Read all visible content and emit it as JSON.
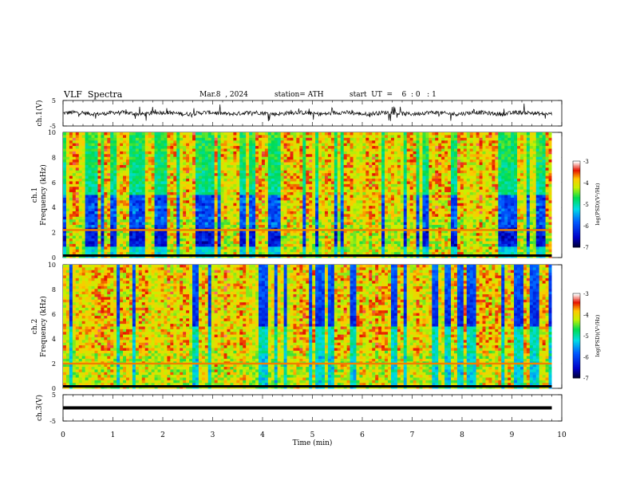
{
  "header": {
    "title": "VLF  Spectra",
    "date": "Mar.8  , 2024",
    "station": "station= ATH",
    "start": "start  UT  =    6  : 0   : 1"
  },
  "chart_data": [
    {
      "type": "line",
      "panel": "ch1-waveform",
      "ylabel": "ch.1(V)",
      "yticks": [
        "5",
        "-5"
      ],
      "ylim": [
        -5,
        5
      ],
      "x_range": [
        0,
        9.8
      ],
      "baseline": 0
    },
    {
      "type": "heatmap",
      "panel": "ch1-spectrogram",
      "ylabel_lines": [
        "ch.1",
        "Frequency  (kHz)"
      ],
      "yticks": [
        "0",
        "2",
        "4",
        "6",
        "8",
        "10"
      ],
      "ylim": [
        0,
        10
      ],
      "x_range": [
        0,
        9.8
      ],
      "colorbar": {
        "label": "log(PSD)(V²/Hz)",
        "ticks": [
          "-3",
          "-4",
          "-5",
          "-6",
          "-7"
        ],
        "range": [
          -7,
          -3
        ]
      },
      "low_band_khz": [
        0.9,
        2.2
      ],
      "hum_line_khz": 2.2
    },
    {
      "type": "heatmap",
      "panel": "ch2-spectrogram",
      "ylabel_lines": [
        "ch.2",
        "Frequency  (kHz)"
      ],
      "yticks": [
        "0",
        "2",
        "4",
        "6",
        "8",
        "10"
      ],
      "ylim": [
        0,
        10
      ],
      "x_range": [
        0,
        9.8
      ],
      "colorbar": {
        "label": "log(PSD)(V²/Hz)",
        "ticks": [
          "-3",
          "-4",
          "-5",
          "-6",
          "-7"
        ],
        "range": [
          -7,
          -3
        ]
      },
      "hum_line_khz": 2.0
    },
    {
      "type": "line",
      "panel": "ch3-waveform",
      "ylabel": "ch.3(V)",
      "yticks": [
        "5",
        "-5"
      ],
      "ylim": [
        -5,
        5
      ],
      "x_range": [
        0,
        9.8
      ],
      "baseline": 0
    }
  ],
  "x_axis": {
    "label": "Time  (min)",
    "ticks": [
      "0",
      "1",
      "2",
      "3",
      "4",
      "5",
      "6",
      "7",
      "8",
      "9",
      "10"
    ],
    "range": [
      0,
      10
    ]
  }
}
